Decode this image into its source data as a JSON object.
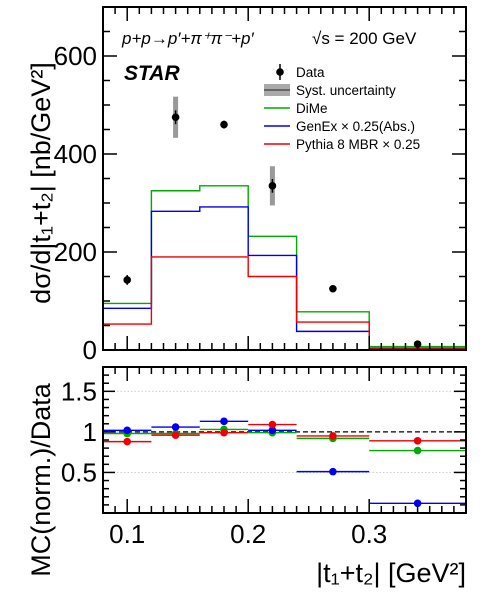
{
  "chart_data": [
    {
      "type": "line",
      "panel": "top",
      "ylabel": "dσ/d|t₁+t₂| [nb/GeV²]",
      "xlim": [
        0.08,
        0.38
      ],
      "ylim": [
        0,
        700
      ],
      "y_ticks": [
        0,
        200,
        400,
        600
      ],
      "process_label": "p+p→p′+π⁺π⁻+p′",
      "energy_label": "√s = 200 GeV",
      "experiment_label": "STAR",
      "legend": [
        {
          "key": "data",
          "label": "Data",
          "color": "#000000"
        },
        {
          "key": "syst",
          "label": "Syst. uncertainty",
          "color": "#888888"
        },
        {
          "key": "dime",
          "label": "DiMe",
          "color": "#00aa00"
        },
        {
          "key": "genex",
          "label": "GenEx × 0.25(Abs.)",
          "color": "#0000ee"
        },
        {
          "key": "pythia",
          "label": "Pythia 8 MBR × 0.25",
          "color": "#ee0000"
        }
      ],
      "bin_edges": [
        0.08,
        0.12,
        0.16,
        0.2,
        0.24,
        0.3,
        0.38
      ],
      "series": [
        {
          "name": "Data",
          "x": [
            0.1,
            0.14,
            0.18,
            0.22,
            0.27,
            0.34
          ],
          "y": [
            143,
            475,
            460,
            335,
            125,
            12
          ],
          "stat_err": [
            10,
            14,
            8,
            14,
            5,
            2
          ],
          "syst_err": [
            0,
            42,
            0,
            40,
            0,
            0
          ]
        },
        {
          "name": "DiMe",
          "values": [
            95,
            325,
            335,
            232,
            78,
            7
          ]
        },
        {
          "name": "GenEx × 0.25(Abs.)",
          "values": [
            85,
            283,
            292,
            193,
            38,
            2
          ]
        },
        {
          "name": "Pythia 8 MBR × 0.25",
          "values": [
            53,
            190,
            190,
            150,
            57,
            4
          ]
        }
      ]
    },
    {
      "type": "scatter",
      "panel": "bottom",
      "xlabel": "|t₁+t₂| [GeV²]",
      "ylabel": "MC(norm.)/Data",
      "xlim": [
        0.08,
        0.38
      ],
      "ylim": [
        0,
        1.8
      ],
      "x_ticks": [
        0.1,
        0.2,
        0.3
      ],
      "y_ticks": [
        0.5,
        1,
        1.5
      ],
      "reference_line": 1,
      "series": [
        {
          "name": "DiMe",
          "x": [
            0.1,
            0.14,
            0.18,
            0.22,
            0.27,
            0.34
          ],
          "y": [
            0.98,
            0.98,
            1.03,
            0.99,
            0.92,
            0.77
          ]
        },
        {
          "name": "GenEx × 0.25(Abs.)",
          "x": [
            0.1,
            0.14,
            0.18,
            0.22,
            0.27,
            0.34
          ],
          "y": [
            1.02,
            1.06,
            1.13,
            1.02,
            0.51,
            0.12
          ]
        },
        {
          "name": "Pythia 8 MBR × 0.25",
          "x": [
            0.1,
            0.14,
            0.18,
            0.22,
            0.27,
            0.34
          ],
          "y": [
            0.88,
            0.96,
            0.99,
            1.09,
            0.95,
            0.89
          ]
        }
      ]
    }
  ]
}
